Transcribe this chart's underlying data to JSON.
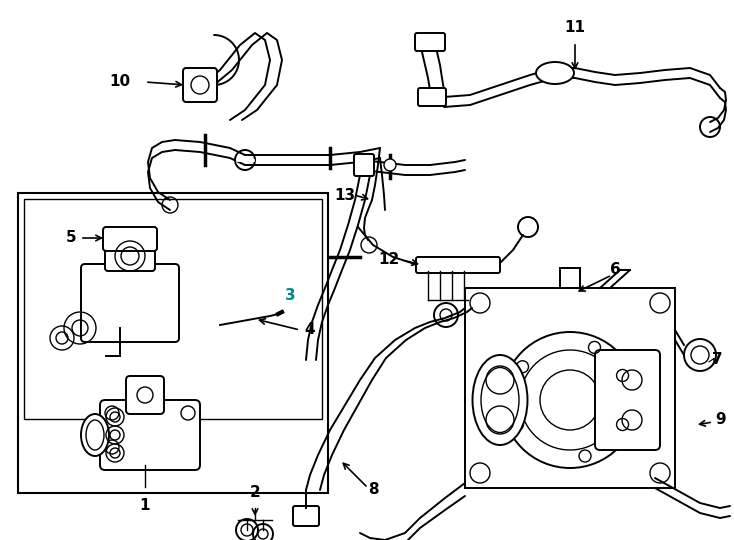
{
  "background_color": "#ffffff",
  "line_color": "#000000",
  "teal_color": "#008B8B",
  "fig_width": 7.34,
  "fig_height": 5.4,
  "dpi": 100,
  "label_fontsize": 11,
  "lw_pipe": 2.2,
  "lw_thin": 1.0,
  "lw_main": 1.4,
  "lw_thick": 2.8
}
